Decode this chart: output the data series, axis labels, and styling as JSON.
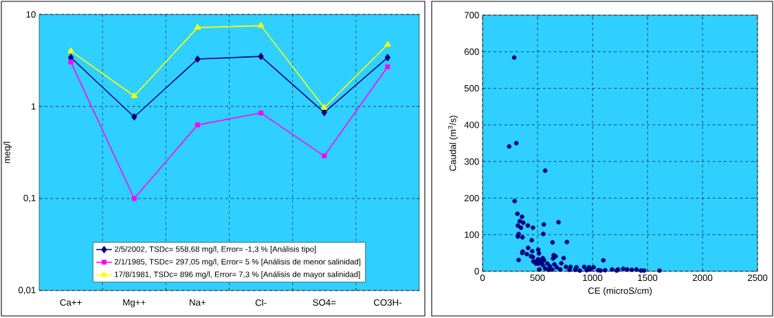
{
  "chart_data": [
    {
      "type": "line",
      "ylabel": "meq/l",
      "categories": [
        "Ca++",
        "Mg++",
        "Na+",
        "Cl-",
        "SO4=",
        "CO3H-"
      ],
      "series": [
        {
          "name": "2/5/2002, TSDc= 558,68 mg/l, Error= -1,3 % [Análisis tipo]",
          "color": "#000080",
          "marker": "diamond",
          "values": [
            3.4,
            0.77,
            3.27,
            3.5,
            0.86,
            3.4
          ]
        },
        {
          "name": "2/1/1985, TSDc= 297,05 mg/l, Error= 5 % [Análisis de menor salinidad]",
          "color": "#ff00ff",
          "marker": "square",
          "values": [
            3.05,
            0.1,
            0.63,
            0.85,
            0.29,
            2.7
          ]
        },
        {
          "name": "17/8/1981, TSDc= 896 mg/l, Error= 7,3 % [Análisis de mayor salinidad]",
          "color": "#ffff00",
          "marker": "triangle",
          "values": [
            4.0,
            1.3,
            7.2,
            7.55,
            0.97,
            4.7
          ]
        }
      ],
      "log": true,
      "ylim": [
        0.01,
        10
      ],
      "yticks": [
        {
          "value": 0.01,
          "label": "0,01"
        },
        {
          "value": 0.1,
          "label": "0,1"
        },
        {
          "value": 1,
          "label": "1"
        },
        {
          "value": 10,
          "label": "10"
        }
      ],
      "grid": true,
      "legend": "bottom"
    },
    {
      "type": "scatter",
      "xlabel": "CE (microS/cm)",
      "ylabel": "Caudal (m$^{3}$/s)",
      "color": "#000080",
      "marker": "circle",
      "x": [
        288,
        242,
        307,
        569,
        292,
        317,
        359,
        338,
        370,
        321,
        412,
        349,
        458,
        557,
        691,
        328,
        552,
        321,
        363,
        447,
        636,
        767,
        414,
        506,
        365,
        452,
        361,
        513,
        403,
        441,
        457,
        647,
        664,
        737,
        328,
        641,
        548,
        462,
        494,
        506,
        527,
        559,
        1098,
        510,
        548,
        590,
        653,
        716,
        517,
        611,
        601,
        674,
        706,
        758,
        800,
        853,
        884,
        924,
        968,
        1010,
        1052,
        1115,
        1178,
        1231,
        1279,
        1315,
        1357,
        1399,
        1441,
        1468,
        1609,
        790,
        842,
        947,
        979,
        1073,
        1220,
        569,
        632,
        485,
        538
      ],
      "values": [
        584,
        341,
        350,
        275,
        192,
        157,
        149,
        137,
        133,
        125,
        125,
        119,
        119,
        128,
        134,
        102,
        102,
        95,
        93,
        85,
        79,
        80,
        64,
        59,
        54,
        55,
        50,
        49,
        47,
        41,
        39,
        44,
        41,
        36,
        31,
        35,
        36,
        27,
        28,
        33,
        29,
        30,
        30,
        21,
        17,
        21,
        19,
        22,
        5,
        14,
        4,
        11,
        5,
        12,
        12,
        11,
        2,
        12,
        11,
        11,
        3,
        3,
        5,
        5,
        7,
        5,
        4,
        5,
        2,
        2,
        2,
        4,
        4,
        3,
        5,
        2,
        2,
        8,
        5,
        21,
        24
      ],
      "xlim": [
        0,
        2500
      ],
      "xticks": [
        0,
        500,
        1000,
        1500,
        2000,
        2500
      ],
      "ylim": [
        0,
        700
      ],
      "yticks": [
        0,
        100,
        200,
        300,
        400,
        500,
        600,
        700
      ],
      "grid": true
    }
  ]
}
